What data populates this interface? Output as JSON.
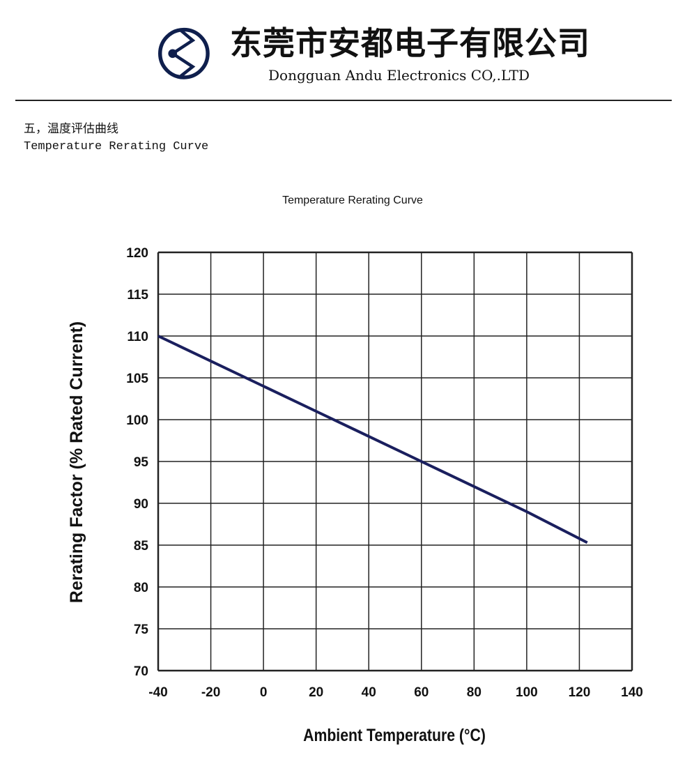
{
  "header": {
    "company_cn": "东莞市安都电子有限公司",
    "company_en": "Dongguan Andu Electronics CO,.LTD",
    "logo_icon": "andu-logo-icon"
  },
  "section": {
    "title_cn": "五，温度评估曲线",
    "title_en": "Temperature Rerating Curve"
  },
  "chart_data": {
    "type": "line",
    "title": "Temperature Rerating Curve",
    "xlabel": "Ambient Temperature (°C)",
    "ylabel": "Rerating Factor (% Rated Current)",
    "xlim": [
      -40,
      140
    ],
    "ylim": [
      70,
      120
    ],
    "xticks": [
      -40,
      -20,
      0,
      20,
      40,
      60,
      80,
      100,
      120,
      140
    ],
    "yticks": [
      70,
      75,
      80,
      85,
      90,
      95,
      100,
      105,
      110,
      115,
      120
    ],
    "grid": true,
    "line_color": "#1a1f5e",
    "series": [
      {
        "name": "Rerating Factor",
        "x": [
          -40,
          0,
          20,
          60,
          100,
          123
        ],
        "y": [
          110,
          104,
          101,
          95,
          89,
          85.3
        ]
      }
    ]
  }
}
